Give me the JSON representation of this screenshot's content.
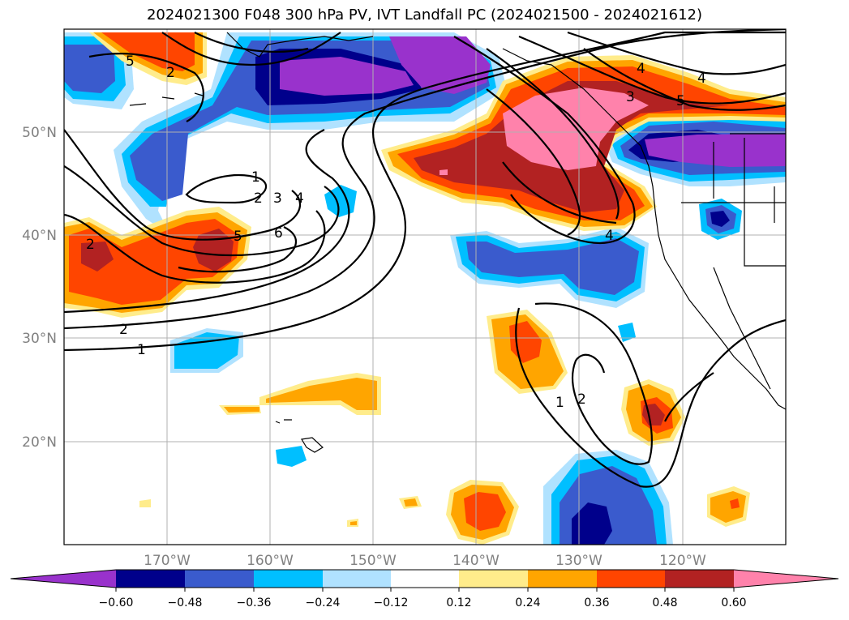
{
  "title": "2024021300 F048 300 hPa PV, IVT Landfall PC (2024021500 - 2024021612)",
  "map": {
    "lon_labels": [
      "170°W",
      "160°W",
      "150°W",
      "140°W",
      "130°W",
      "120°W"
    ],
    "lat_labels": [
      "50°N",
      "40°N",
      "30°N",
      "20°N"
    ],
    "contour_labels": [
      "5",
      "2",
      "1",
      "2",
      "3",
      "4",
      "5",
      "6",
      "2",
      "1",
      "1",
      "2",
      "3",
      "4",
      "5",
      "4",
      "4",
      "2"
    ]
  },
  "colorbar": {
    "colors": [
      "#9932cc",
      "#00008b",
      "#3a5bcd",
      "#00bfff",
      "#b0e2ff",
      "#ffffff",
      "#ffec8b",
      "#ffa500",
      "#ff4500",
      "#b22222",
      "#ff82ab"
    ],
    "tick_labels": [
      "−0.60",
      "−0.48",
      "−0.36",
      "−0.24",
      "−0.12",
      "0.12",
      "0.24",
      "0.36",
      "0.48",
      "0.60"
    ]
  }
}
